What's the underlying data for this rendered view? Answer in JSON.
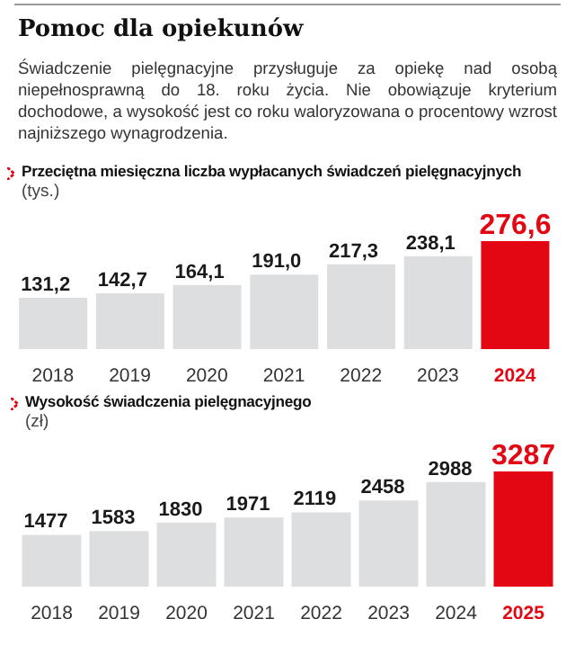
{
  "chart_data": [
    {
      "type": "bar",
      "title": "Przeciętna miesięczna liczba wypłacanych świadczeń pielęgnacyjnych",
      "ylabel": "(tys.)",
      "annotations": [
        "Pomoc dla opiekunów",
        "Świadczenie pielęgnacyjne przysługuje za opiekę nad osobą niepełnosprawną do 18. roku życia. Nie obowiązuje kryterium dochodowe, a wysokość jest co roku waloryzowana o procentowy wzrost najniższego wynagrodzenia."
      ],
      "categories": [
        "2018",
        "2019",
        "2020",
        "2021",
        "2022",
        "2023",
        "2024"
      ],
      "values": [
        131.2,
        142.7,
        164.1,
        191.0,
        217.3,
        238.1,
        276.6
      ],
      "value_labels": [
        "131,2",
        "142,7",
        "164,1",
        "191,0",
        "217,3",
        "238,1",
        "276,6"
      ],
      "colors": [
        "#dcdee0",
        "#dcdee0",
        "#dcdee0",
        "#dcdee0",
        "#dcdee0",
        "#dcdee0",
        "#e30613"
      ]
    },
    {
      "type": "bar",
      "title": "Wysokość świadczenia pielęgnacyjnego",
      "ylabel": "(zł)",
      "categories": [
        "2018",
        "2019",
        "2020",
        "2021",
        "2022",
        "2023",
        "2024",
        "2025"
      ],
      "values": [
        1477,
        1583,
        1830,
        1971,
        2119,
        2458,
        2988,
        3287
      ],
      "data_labels": true,
      "colors": [
        "#dcdee0",
        "#dcdee0",
        "#dcdee0",
        "#dcdee0",
        "#dcdee0",
        "#dcdee0",
        "#dcdee0",
        "#e30613"
      ]
    }
  ]
}
